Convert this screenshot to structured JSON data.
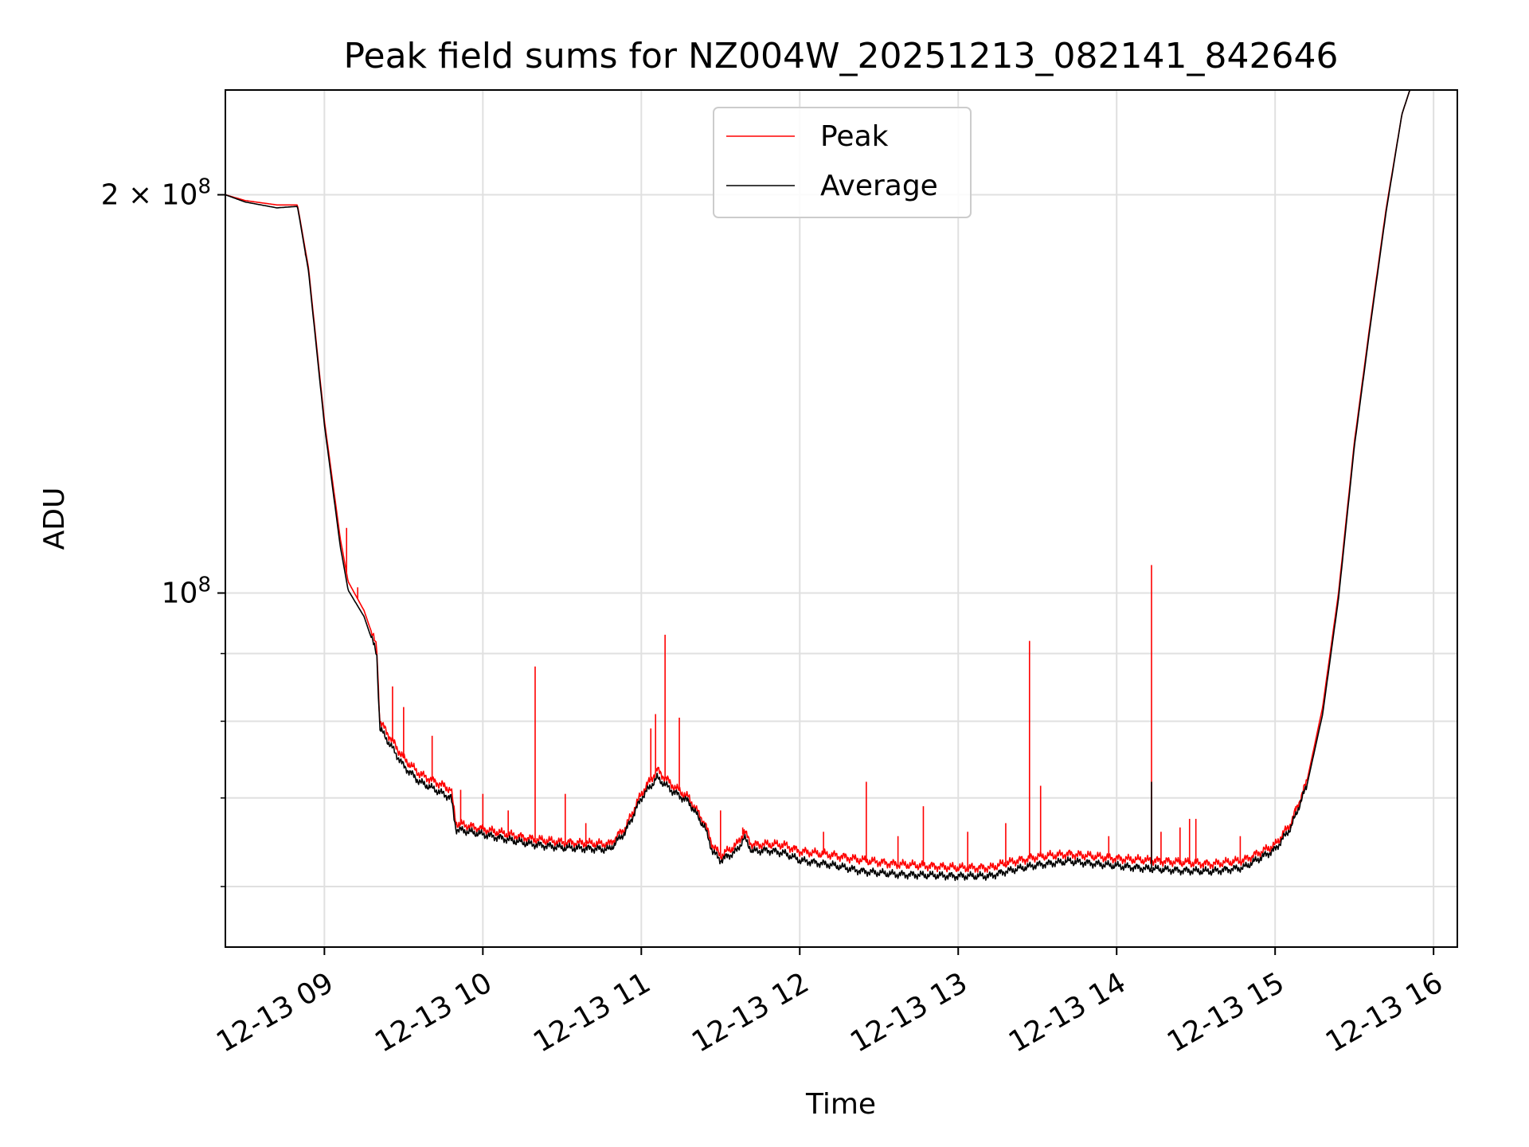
{
  "chart_data": {
    "type": "line",
    "title": "Peak field sums for NZ004W_20251213_082141_842646",
    "xlabel": "Time",
    "ylabel": "ADU",
    "yscale": "log",
    "ylim": [
      54000000,
      240000000
    ],
    "xlim_hours": [
      8.375,
      16.15
    ],
    "grid": true,
    "legend_position": "upper center",
    "x_ticks": [
      {
        "hour": 9,
        "label": "12-13 09"
      },
      {
        "hour": 10,
        "label": "12-13 10"
      },
      {
        "hour": 11,
        "label": "12-13 11"
      },
      {
        "hour": 12,
        "label": "12-13 12"
      },
      {
        "hour": 13,
        "label": "12-13 13"
      },
      {
        "hour": 14,
        "label": "12-13 14"
      },
      {
        "hour": 15,
        "label": "12-13 15"
      },
      {
        "hour": 16,
        "label": "12-13 16"
      }
    ],
    "y_major_ticks": [
      {
        "value": 100000000,
        "base": "10",
        "exp": "8",
        "mantissa": ""
      },
      {
        "value": 200000000,
        "base": "10",
        "exp": "8",
        "mantissa": "2"
      }
    ],
    "y_minor_ticks": [
      60000000,
      70000000,
      80000000,
      90000000
    ],
    "series": [
      {
        "name": "Peak",
        "color": "#ff0000",
        "points": [
          [
            8.375,
            200000000
          ],
          [
            8.5,
            198000000
          ],
          [
            8.7,
            196500000
          ],
          [
            8.83,
            196500000
          ],
          [
            8.9,
            176000000
          ],
          [
            9.0,
            135000000
          ],
          [
            9.1,
            110000000
          ],
          [
            9.15,
            102000000
          ],
          [
            9.25,
            97000000
          ],
          [
            9.33,
            91000000
          ],
          [
            9.35,
            80000000
          ],
          [
            9.5,
            75000000
          ],
          [
            9.6,
            73000000
          ],
          [
            9.7,
            72000000
          ],
          [
            9.8,
            71000000
          ],
          [
            9.83,
            67000000
          ],
          [
            10.0,
            66300000
          ],
          [
            10.3,
            65200000
          ],
          [
            10.5,
            64800000
          ],
          [
            10.8,
            64600000
          ],
          [
            10.9,
            66500000
          ],
          [
            11.0,
            70500000
          ],
          [
            11.1,
            73500000
          ],
          [
            11.2,
            71500000
          ],
          [
            11.3,
            70000000
          ],
          [
            11.4,
            67000000
          ],
          [
            11.45,
            64500000
          ],
          [
            11.5,
            63300000
          ],
          [
            11.6,
            64500000
          ],
          [
            11.65,
            66000000
          ],
          [
            11.7,
            64500000
          ],
          [
            11.8,
            64600000
          ],
          [
            11.9,
            64500000
          ],
          [
            12.0,
            63800000
          ],
          [
            12.2,
            63400000
          ],
          [
            12.4,
            62800000
          ],
          [
            12.6,
            62400000
          ],
          [
            12.8,
            62200000
          ],
          [
            13.0,
            62000000
          ],
          [
            13.2,
            62000000
          ],
          [
            13.3,
            62500000
          ],
          [
            13.5,
            63200000
          ],
          [
            13.7,
            63500000
          ],
          [
            14.0,
            63000000
          ],
          [
            14.2,
            62800000
          ],
          [
            14.4,
            62600000
          ],
          [
            14.6,
            62400000
          ],
          [
            14.8,
            62800000
          ],
          [
            15.0,
            64500000
          ],
          [
            15.1,
            67000000
          ],
          [
            15.2,
            72000000
          ],
          [
            15.3,
            82000000
          ],
          [
            15.4,
            100000000
          ],
          [
            15.5,
            130000000
          ],
          [
            15.6,
            160000000
          ],
          [
            15.7,
            195000000
          ],
          [
            15.8,
            230000000
          ],
          [
            15.85,
            240000000
          ],
          [
            16.0,
            240000000
          ]
        ],
        "spikes": [
          [
            8.88,
            180000000
          ],
          [
            9.14,
            112000000
          ],
          [
            9.21,
            101000000
          ],
          [
            9.43,
            85000000
          ],
          [
            9.5,
            82000000
          ],
          [
            9.68,
            78000000
          ],
          [
            9.86,
            71000000
          ],
          [
            10.0,
            70500000
          ],
          [
            10.16,
            68500000
          ],
          [
            10.33,
            88000000
          ],
          [
            10.52,
            70500000
          ],
          [
            10.65,
            67000000
          ],
          [
            11.06,
            79000000
          ],
          [
            11.09,
            81000000
          ],
          [
            11.15,
            93000000
          ],
          [
            11.24,
            80500000
          ],
          [
            11.5,
            68500000
          ],
          [
            11.64,
            66500000
          ],
          [
            12.15,
            66000000
          ],
          [
            12.42,
            72000000
          ],
          [
            12.62,
            65500000
          ],
          [
            12.78,
            69000000
          ],
          [
            13.06,
            66000000
          ],
          [
            13.3,
            67000000
          ],
          [
            13.45,
            92000000
          ],
          [
            13.52,
            71500000
          ],
          [
            13.95,
            65500000
          ],
          [
            14.22,
            105000000
          ],
          [
            14.28,
            66000000
          ],
          [
            14.4,
            66500000
          ],
          [
            14.46,
            67500000
          ],
          [
            14.5,
            67500000
          ],
          [
            14.78,
            65500000
          ],
          [
            15.13,
            69000000
          ]
        ]
      },
      {
        "name": "Average",
        "color": "#000000",
        "points": [
          [
            8.375,
            200000000
          ],
          [
            8.5,
            197500000
          ],
          [
            8.7,
            195500000
          ],
          [
            8.83,
            196000000
          ],
          [
            8.9,
            175000000
          ],
          [
            9.0,
            134000000
          ],
          [
            9.1,
            108500000
          ],
          [
            9.15,
            100500000
          ],
          [
            9.25,
            96000000
          ],
          [
            9.33,
            90000000
          ],
          [
            9.35,
            79000000
          ],
          [
            9.5,
            74000000
          ],
          [
            9.6,
            72000000
          ],
          [
            9.7,
            71000000
          ],
          [
            9.8,
            70000000
          ],
          [
            9.83,
            66300000
          ],
          [
            10.0,
            65700000
          ],
          [
            10.3,
            64600000
          ],
          [
            10.5,
            64200000
          ],
          [
            10.8,
            64000000
          ],
          [
            10.9,
            66000000
          ],
          [
            11.0,
            70000000
          ],
          [
            11.1,
            72500000
          ],
          [
            11.2,
            70800000
          ],
          [
            11.3,
            69500000
          ],
          [
            11.4,
            66500000
          ],
          [
            11.45,
            63800000
          ],
          [
            11.5,
            62800000
          ],
          [
            11.6,
            63800000
          ],
          [
            11.65,
            65300000
          ],
          [
            11.7,
            63800000
          ],
          [
            11.8,
            63900000
          ],
          [
            11.9,
            63600000
          ],
          [
            12.0,
            62800000
          ],
          [
            12.2,
            62300000
          ],
          [
            12.4,
            61600000
          ],
          [
            12.6,
            61300000
          ],
          [
            12.8,
            61200000
          ],
          [
            13.0,
            61100000
          ],
          [
            13.2,
            61100000
          ],
          [
            13.3,
            61600000
          ],
          [
            13.5,
            62300000
          ],
          [
            13.7,
            62700000
          ],
          [
            14.0,
            62200000
          ],
          [
            14.2,
            61900000
          ],
          [
            14.4,
            61700000
          ],
          [
            14.6,
            61600000
          ],
          [
            14.8,
            62000000
          ],
          [
            15.0,
            64000000
          ],
          [
            15.1,
            66500000
          ],
          [
            15.2,
            71500000
          ],
          [
            15.3,
            81000000
          ],
          [
            15.4,
            99000000
          ],
          [
            15.5,
            129000000
          ],
          [
            15.6,
            159000000
          ],
          [
            15.7,
            194000000
          ],
          [
            15.8,
            230000000
          ],
          [
            15.85,
            240000000
          ],
          [
            16.0,
            240000000
          ]
        ],
        "spikes": [
          [
            14.22,
            72000000
          ]
        ]
      }
    ]
  }
}
